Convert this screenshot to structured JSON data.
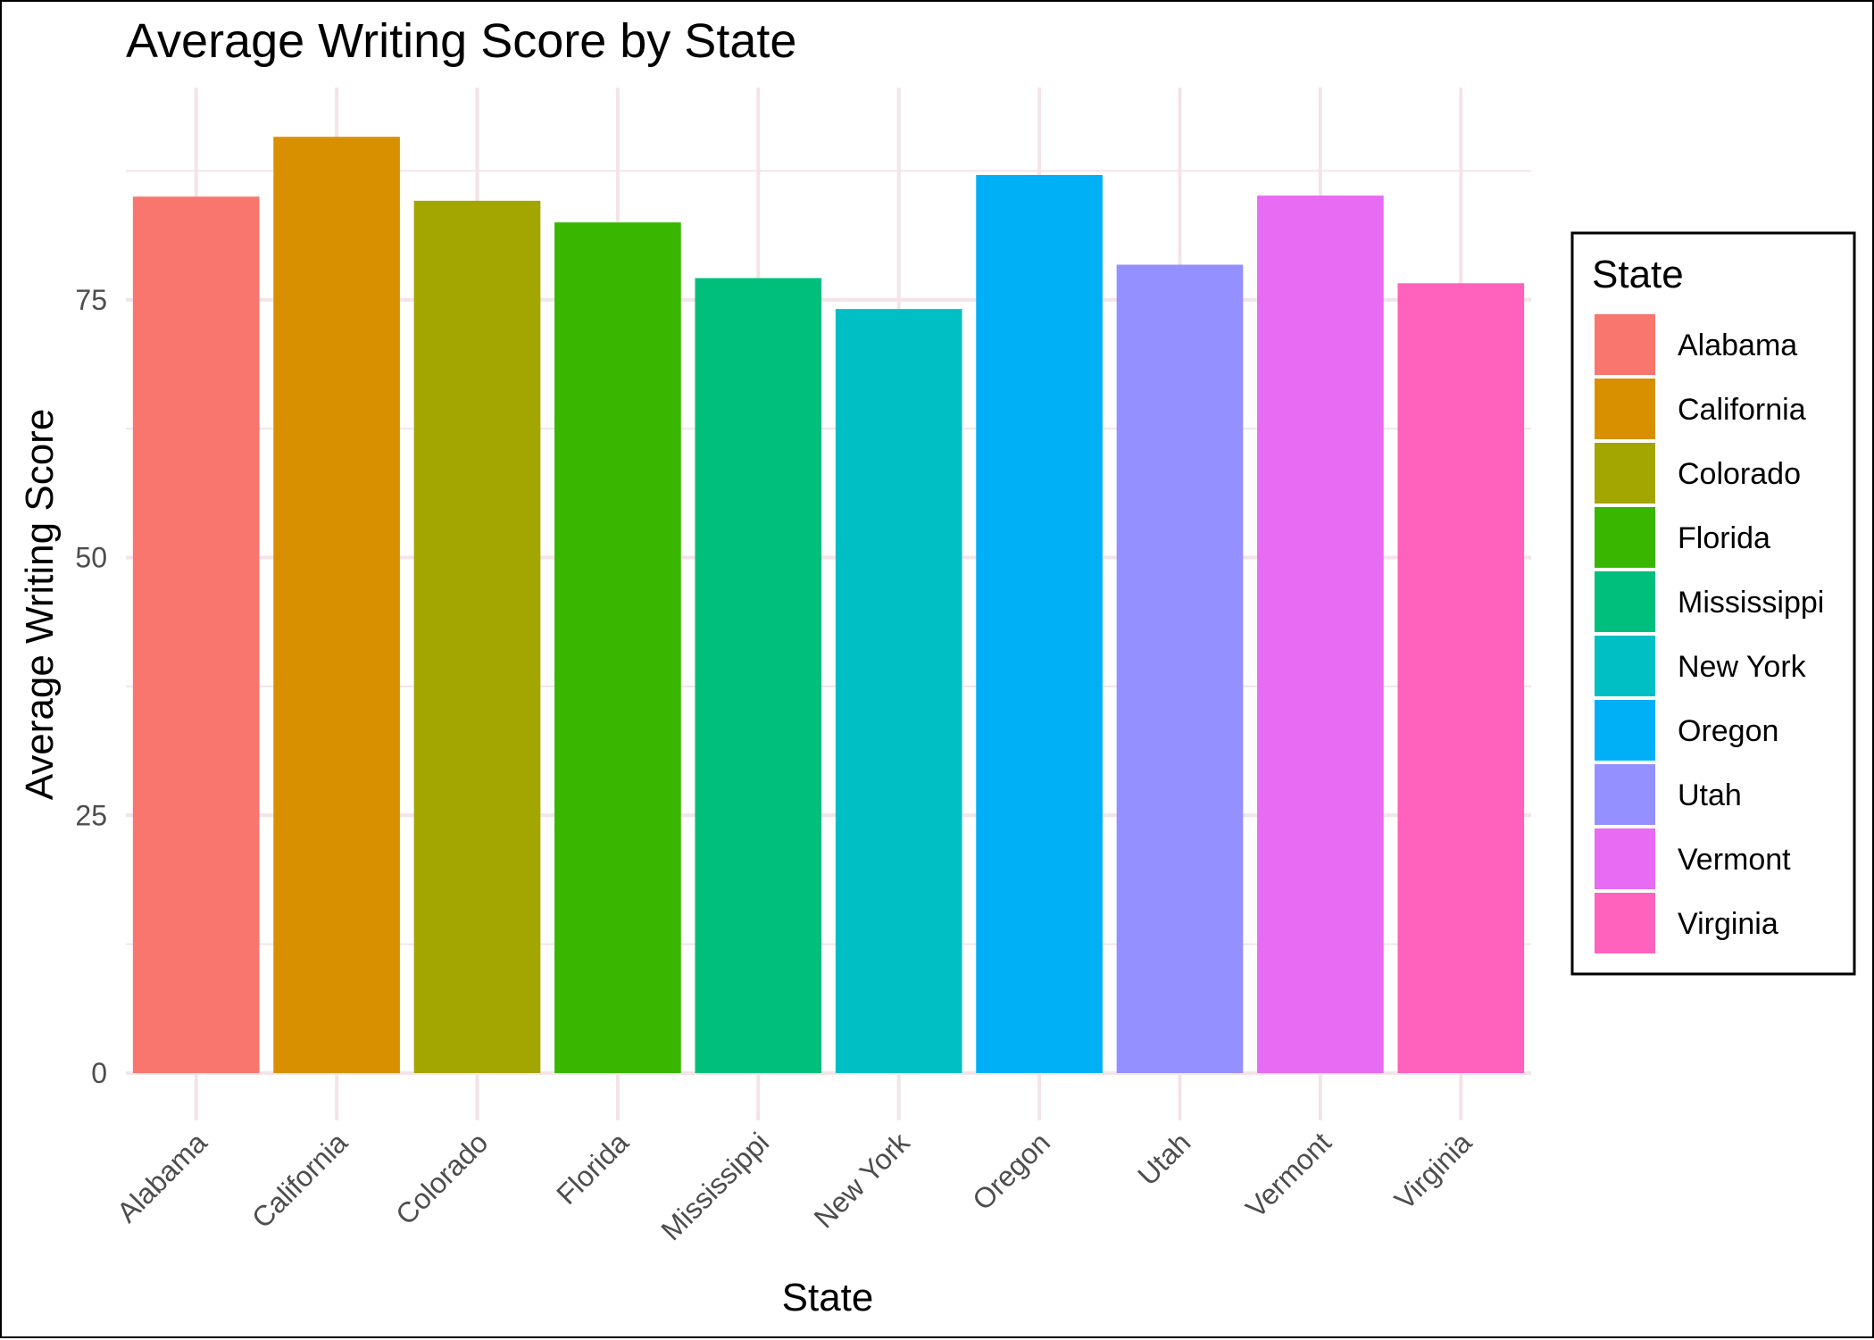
{
  "chart_data": {
    "type": "bar",
    "title": "Average Writing Score by State",
    "xlabel": "State",
    "ylabel": "Average Writing Score",
    "categories": [
      "Alabama",
      "California",
      "Colorado",
      "Florida",
      "Mississippi",
      "New York",
      "Oregon",
      "Utah",
      "Vermont",
      "Virginia"
    ],
    "values": [
      85,
      90.8,
      84.6,
      82.5,
      77.1,
      74.1,
      87.1,
      78.4,
      85.1,
      76.6
    ],
    "colors": [
      "#F8766D",
      "#D89000",
      "#A3A500",
      "#39B600",
      "#00BF7D",
      "#00BFC4",
      "#00B0F6",
      "#9590FF",
      "#E76BF3",
      "#FF62BC"
    ],
    "yticks": [
      0,
      25,
      50,
      75
    ],
    "ylim": [
      0,
      96
    ],
    "grid": true,
    "legend": {
      "title": "State",
      "position": "right",
      "entries": [
        "Alabama",
        "California",
        "Colorado",
        "Florida",
        "Mississippi",
        "New York",
        "Oregon",
        "Utah",
        "Vermont",
        "Virginia"
      ]
    }
  }
}
